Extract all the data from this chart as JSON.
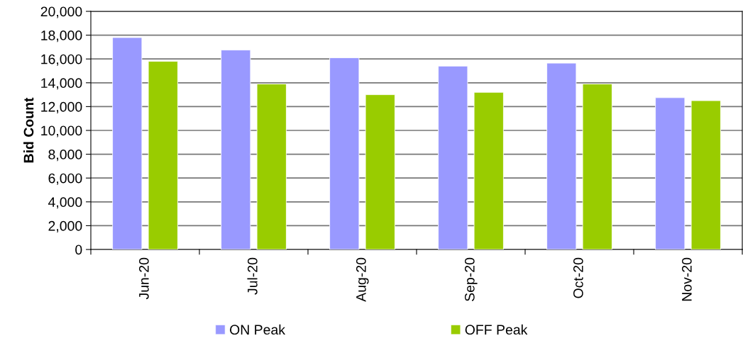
{
  "chart_data": {
    "type": "bar",
    "ylabel": "Bid Count",
    "categories": [
      "Jun-20",
      "Jul-20",
      "Aug-20",
      "Sep-20",
      "Oct-20",
      "Nov-20"
    ],
    "series": [
      {
        "name": "ON Peak",
        "color": "#9999ff",
        "values": [
          17800,
          16750,
          16100,
          15400,
          15650,
          12750
        ]
      },
      {
        "name": "OFF Peak",
        "color": "#99cc00",
        "values": [
          15800,
          13900,
          13000,
          13200,
          13900,
          12500
        ]
      }
    ],
    "ylim": [
      0,
      20000
    ],
    "yticks": [
      {
        "value": 0,
        "label": "0"
      },
      {
        "value": 2000,
        "label": "2,000"
      },
      {
        "value": 4000,
        "label": "4,000"
      },
      {
        "value": 6000,
        "label": "6,000"
      },
      {
        "value": 8000,
        "label": "8,000"
      },
      {
        "value": 10000,
        "label": "10,000"
      },
      {
        "value": 12000,
        "label": "12,000"
      },
      {
        "value": 14000,
        "label": "14,000"
      },
      {
        "value": 16000,
        "label": "16,000"
      },
      {
        "value": 18000,
        "label": "18,000"
      },
      {
        "value": 20000,
        "label": "20,000"
      }
    ],
    "grid": "y",
    "legend": "bottom"
  }
}
